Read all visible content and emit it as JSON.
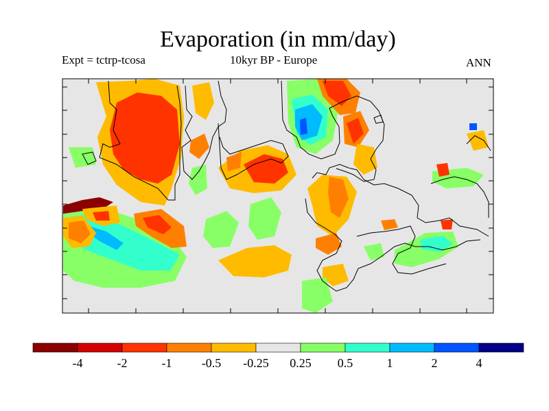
{
  "chart_data": {
    "type": "heatmap",
    "title": "Evaporation (in mm/day)",
    "subtitle_left": "Expt = tctrp-tcosa",
    "subtitle_center": "10kyr BP - Europe",
    "subtitle_right": "ANN",
    "region": "Europe",
    "variable": "Evaporation difference",
    "units": "mm/day",
    "xlabel": "",
    "ylabel": "",
    "colorbar": {
      "tick_labels": [
        "-4",
        "-2",
        "-1",
        "-0.5",
        "-0.25",
        "0.25",
        "0.5",
        "1",
        "2",
        "4"
      ],
      "levels": [
        -4,
        -2,
        -1,
        -0.5,
        -0.25,
        0.25,
        0.5,
        1,
        2,
        4
      ],
      "colors": [
        "#8b0000",
        "#d40000",
        "#ff3300",
        "#ff8000",
        "#ffbb00",
        "#e6e6e6",
        "#88ff66",
        "#33ffcc",
        "#00bbff",
        "#0055ff",
        "#000088"
      ]
    }
  }
}
